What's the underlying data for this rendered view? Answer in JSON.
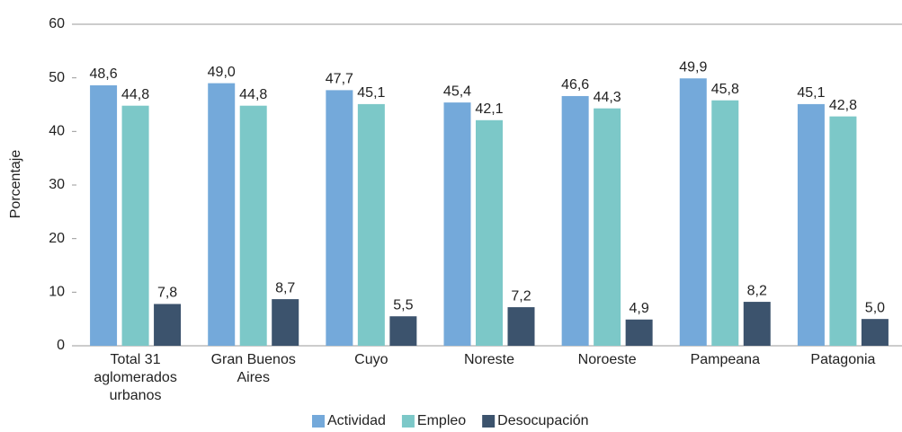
{
  "chart_data": {
    "type": "bar",
    "ylabel": "Porcentaje",
    "categories": [
      "Total 31 aglomerados urbanos",
      "Gran Buenos Aires",
      "Cuyo",
      "Noreste",
      "Noroeste",
      "Pampeana",
      "Patagonia"
    ],
    "series": [
      {
        "name": "Actividad",
        "color": "#74a9da",
        "values": [
          48.6,
          49.0,
          47.7,
          45.4,
          46.6,
          49.9,
          45.1
        ],
        "value_labels": [
          "48,6",
          "49,0",
          "47,7",
          "45,4",
          "46,6",
          "49,9",
          "45,1"
        ]
      },
      {
        "name": "Empleo",
        "color": "#7cc8c8",
        "values": [
          44.8,
          44.8,
          45.1,
          42.1,
          44.3,
          45.8,
          42.8
        ],
        "value_labels": [
          "44,8",
          "44,8",
          "45,1",
          "42,1",
          "44,3",
          "45,8",
          "42,8"
        ]
      },
      {
        "name": "Desocupación",
        "color": "#3c536d",
        "values": [
          7.8,
          8.7,
          5.5,
          7.2,
          4.9,
          8.2,
          5.0
        ],
        "value_labels": [
          "7,8",
          "8,7",
          "5,5",
          "7,2",
          "4,9",
          "8,2",
          "5,0"
        ]
      }
    ],
    "ylim": [
      0,
      60
    ],
    "yticks": [
      0,
      10,
      20,
      30,
      40,
      50,
      60
    ],
    "legend": "bottom"
  }
}
